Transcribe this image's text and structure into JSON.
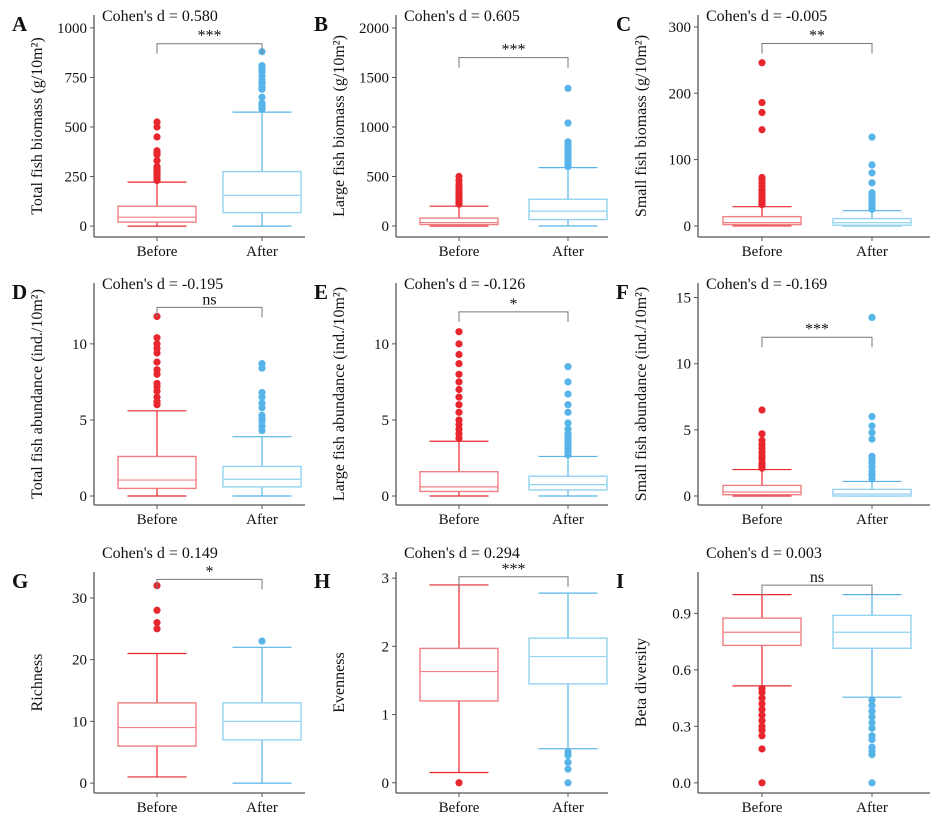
{
  "chart_data": [
    {
      "letter": "A",
      "type": "box",
      "cohen": "Cohen's d = 0.580",
      "ylabel": "Total fish biomass (g/10m²)",
      "ylim": [
        -55,
        1065
      ],
      "ticks": [
        "0",
        "250",
        "500",
        "750",
        "1000"
      ],
      "significance": "***",
      "sig_y": 920,
      "categories": [
        "Before",
        "After"
      ],
      "groups": [
        {
          "name": "Before",
          "whisker_low": 0,
          "q1": 20,
          "median": 45,
          "q3": 100,
          "whisker_high": 222,
          "outliers": [
            230,
            240,
            250,
            260,
            270,
            280,
            290,
            300,
            330,
            360,
            370,
            380,
            450,
            500,
            525
          ]
        },
        {
          "name": "After",
          "whisker_low": 0,
          "q1": 68,
          "median": 155,
          "q3": 275,
          "whisker_high": 575,
          "outliers": [
            590,
            600,
            610,
            620,
            650,
            690,
            700,
            720,
            730,
            740,
            760,
            780,
            790,
            800,
            810,
            880
          ]
        }
      ]
    },
    {
      "letter": "B",
      "type": "box",
      "cohen": "Cohen's d = 0.605",
      "ylabel": "Large fish biomass (g/10m²)",
      "ylim": [
        -111,
        2131
      ],
      "ticks": [
        "0",
        "500",
        "1000",
        "1500",
        "2000"
      ],
      "significance": "***",
      "sig_y": 1700,
      "categories": [
        "Before",
        "After"
      ],
      "groups": [
        {
          "name": "Before",
          "whisker_low": 0,
          "q1": 15,
          "median": 35,
          "q3": 80,
          "whisker_high": 200,
          "outliers": [
            220,
            240,
            260,
            280,
            300,
            330,
            360,
            390,
            420,
            460,
            500
          ]
        },
        {
          "name": "After",
          "whisker_low": 0,
          "q1": 65,
          "median": 150,
          "q3": 270,
          "whisker_high": 590,
          "outliers": [
            600,
            620,
            650,
            680,
            700,
            720,
            750,
            780,
            800,
            830,
            850,
            1040,
            1390
          ]
        }
      ]
    },
    {
      "letter": "C",
      "type": "box",
      "cohen": "Cohen's d = -0.005",
      "ylabel": "Small fish biomass (g/10m²)",
      "ylim": [
        -16.7,
        318
      ],
      "ticks": [
        "0",
        "100",
        "200",
        "300"
      ],
      "significance": "**",
      "sig_y": 275,
      "categories": [
        "Before",
        "After"
      ],
      "groups": [
        {
          "name": "Before",
          "whisker_low": 0,
          "q1": 2,
          "median": 5,
          "q3": 14,
          "whisker_high": 29,
          "outliers": [
            32,
            35,
            38,
            42,
            45,
            48,
            52,
            55,
            60,
            65,
            70,
            73,
            145,
            171,
            186,
            246
          ]
        },
        {
          "name": "After",
          "whisker_low": 0,
          "q1": 1,
          "median": 5,
          "q3": 11,
          "whisker_high": 23,
          "outliers": [
            25,
            28,
            30,
            33,
            36,
            40,
            44,
            48,
            50,
            65,
            80,
            92,
            134
          ]
        }
      ]
    },
    {
      "letter": "D",
      "type": "box",
      "cohen": "Cohen's d = -0.195",
      "ylabel": "Total fish abundance (ind./10m²)",
      "ylim": [
        -0.59,
        14.0
      ],
      "ticks": [
        "0",
        "5",
        "10"
      ],
      "significance": "ns",
      "sig_y": 12.4,
      "categories": [
        "Before",
        "After"
      ],
      "groups": [
        {
          "name": "Before",
          "whisker_low": 0,
          "q1": 0.5,
          "median": 1.05,
          "q3": 2.6,
          "whisker_high": 5.6,
          "outliers": [
            6.0,
            6.2,
            6.5,
            6.9,
            7.2,
            7.4,
            8.0,
            8.3,
            8.8,
            9.4,
            9.7,
            10.0,
            10.4,
            11.8
          ]
        },
        {
          "name": "After",
          "whisker_low": 0,
          "q1": 0.6,
          "median": 1.1,
          "q3": 1.95,
          "whisker_high": 3.9,
          "outliers": [
            4.3,
            4.6,
            4.9,
            5.1,
            5.3,
            5.8,
            6.1,
            6.5,
            6.8,
            8.4,
            8.7
          ]
        }
      ]
    },
    {
      "letter": "E",
      "type": "box",
      "cohen": "Cohen's d = -0.126",
      "ylabel": "Large fish abundance  (ind./10m²)",
      "ylim": [
        -0.59,
        14.0
      ],
      "ticks": [
        "0",
        "5",
        "10"
      ],
      "significance": "*",
      "sig_y": 12.1,
      "categories": [
        "Before",
        "After"
      ],
      "groups": [
        {
          "name": "Before",
          "whisker_low": 0,
          "q1": 0.3,
          "median": 0.6,
          "q3": 1.6,
          "whisker_high": 3.6,
          "outliers": [
            3.8,
            4.1,
            4.4,
            4.7,
            5.0,
            5.5,
            6.0,
            6.5,
            7.0,
            7.5,
            8.0,
            8.7,
            9.3,
            10.0,
            10.8
          ]
        },
        {
          "name": "After",
          "whisker_low": 0,
          "q1": 0.4,
          "median": 0.75,
          "q3": 1.3,
          "whisker_high": 2.6,
          "outliers": [
            2.7,
            2.9,
            3.1,
            3.3,
            3.5,
            3.7,
            3.9,
            4.1,
            4.4,
            4.8,
            5.5,
            6.0,
            6.7,
            7.5,
            8.5
          ]
        }
      ]
    },
    {
      "letter": "F",
      "type": "box",
      "cohen": "Cohen's d = -0.169",
      "ylabel": "Small fish abundance  (ind./10m²)",
      "ylim": [
        -0.68,
        16.1
      ],
      "ticks": [
        "0",
        "5",
        "10",
        "15"
      ],
      "significance": "***",
      "sig_y": 12.0,
      "categories": [
        "Before",
        "After"
      ],
      "groups": [
        {
          "name": "Before",
          "whisker_low": 0,
          "q1": 0.1,
          "median": 0.3,
          "q3": 0.8,
          "whisker_high": 2.0,
          "outliers": [
            2.1,
            2.3,
            2.5,
            2.8,
            3.0,
            3.3,
            3.6,
            3.9,
            4.2,
            4.7,
            6.5
          ]
        },
        {
          "name": "After",
          "whisker_low": 0,
          "q1": 0,
          "median": 0.15,
          "q3": 0.5,
          "whisker_high": 1.1,
          "outliers": [
            1.3,
            1.6,
            1.9,
            2.2,
            2.5,
            2.8,
            3.0,
            4.3,
            4.8,
            5.3,
            6.0,
            13.5
          ]
        }
      ]
    },
    {
      "letter": "G",
      "type": "box",
      "cohen": "Cohen's d = 0.149",
      "ylabel": "Richness",
      "ylim": [
        -1.6,
        34.2
      ],
      "ticks": [
        "0",
        "10",
        "20",
        "30"
      ],
      "significance": "*",
      "sig_y": 33,
      "categories": [
        "Before",
        "After"
      ],
      "groups": [
        {
          "name": "Before",
          "whisker_low": 1,
          "q1": 6,
          "median": 9,
          "q3": 13,
          "whisker_high": 21,
          "outliers": [
            25,
            26,
            28,
            32
          ]
        },
        {
          "name": "After",
          "whisker_low": 0,
          "q1": 7,
          "median": 10,
          "q3": 13,
          "whisker_high": 22,
          "outliers": [
            23
          ]
        }
      ]
    },
    {
      "letter": "H",
      "type": "box",
      "cohen": "Cohen's d = 0.294",
      "ylabel": "Evenness",
      "ylim": [
        -0.15,
        3.09
      ],
      "ticks": [
        "0",
        "1",
        "2",
        "3"
      ],
      "significance": "***",
      "sig_y": 3.02,
      "categories": [
        "Before",
        "After"
      ],
      "groups": [
        {
          "name": "Before",
          "whisker_low": 0.15,
          "q1": 1.2,
          "median": 1.63,
          "q3": 1.97,
          "whisker_high": 2.9,
          "outliers": [
            0
          ]
        },
        {
          "name": "After",
          "whisker_low": 0.5,
          "q1": 1.45,
          "median": 1.85,
          "q3": 2.12,
          "whisker_high": 2.78,
          "outliers": [
            0,
            0.2,
            0.3,
            0.4,
            0.45
          ]
        }
      ]
    },
    {
      "letter": "I",
      "type": "box",
      "cohen": "Cohen's d = 0.003",
      "ylabel": "Beta diversity",
      "ylim": [
        -0.054,
        1.12
      ],
      "ticks": [
        "0.0",
        "0.3",
        "0.6",
        "0.9"
      ],
      "significance": "ns",
      "sig_y": 1.05,
      "categories": [
        "Before",
        "After"
      ],
      "groups": [
        {
          "name": "Before",
          "whisker_low": 0.515,
          "q1": 0.73,
          "median": 0.8,
          "q3": 0.875,
          "whisker_high": 1.0,
          "outliers": [
            0,
            0.18,
            0.25,
            0.28,
            0.3,
            0.33,
            0.36,
            0.39,
            0.42,
            0.45,
            0.48,
            0.5
          ]
        },
        {
          "name": "After",
          "whisker_low": 0.455,
          "q1": 0.715,
          "median": 0.8,
          "q3": 0.89,
          "whisker_high": 1.0,
          "outliers": [
            0,
            0.15,
            0.17,
            0.19,
            0.23,
            0.25,
            0.29,
            0.32,
            0.35,
            0.38,
            0.41,
            0.44
          ]
        }
      ]
    }
  ],
  "colors": {
    "Before": "#e8262d",
    "After": "#56b4e9",
    "Before_box": "#f07f83",
    "After_box": "#94d3f2",
    "axis": "#555555",
    "bracket": "#777777"
  }
}
